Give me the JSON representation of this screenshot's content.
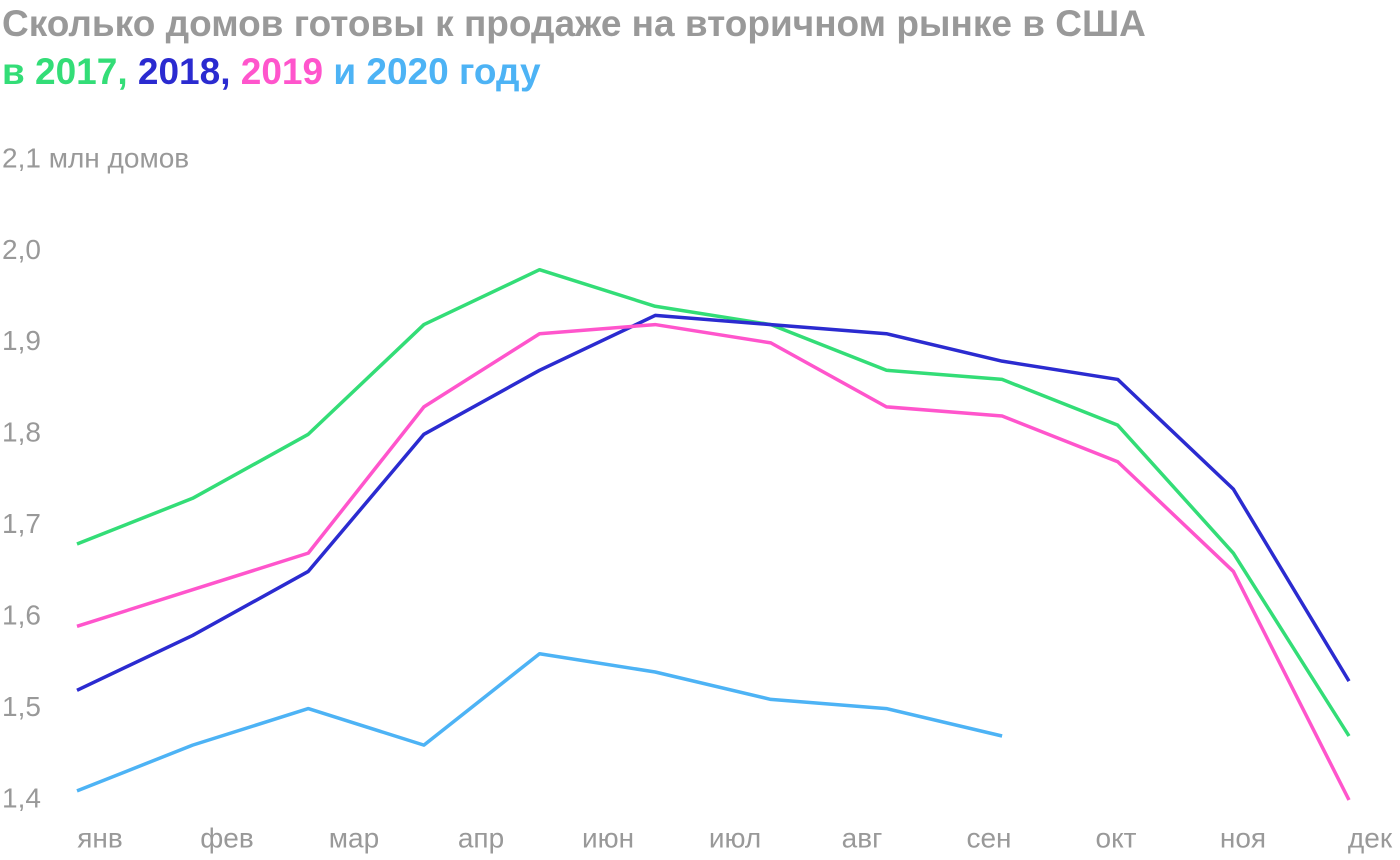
{
  "chart_data": {
    "type": "line",
    "title": "Сколько домов готовы к продаже на вторичном рынке в США",
    "title_prefix": "в",
    "title_separator": ",",
    "title_joiner": "и",
    "title_suffix": "году",
    "categories": [
      "янв",
      "фев",
      "мар",
      "апр",
      null,
      "июн",
      "июл",
      "авг",
      "сен",
      "окт",
      "ноя",
      "дек"
    ],
    "series": [
      {
        "name": "2017",
        "color": "#33dd77",
        "values": [
          1.68,
          1.73,
          1.8,
          1.92,
          1.98,
          1.94,
          1.92,
          1.87,
          1.86,
          1.81,
          1.67,
          1.47
        ]
      },
      {
        "name": "2018",
        "color": "#2b2bd0",
        "values": [
          1.52,
          1.58,
          1.65,
          1.8,
          1.87,
          1.93,
          1.92,
          1.91,
          1.88,
          1.86,
          1.74,
          1.53
        ]
      },
      {
        "name": "2019",
        "color": "#ff55cc",
        "values": [
          1.59,
          1.63,
          1.67,
          1.83,
          1.91,
          1.92,
          1.9,
          1.83,
          1.82,
          1.77,
          1.65,
          1.4
        ]
      },
      {
        "name": "2020",
        "color": "#4db3f5",
        "values": [
          1.41,
          1.46,
          1.5,
          1.46,
          1.56,
          1.54,
          1.51,
          1.5,
          1.47,
          null,
          null,
          null
        ]
      }
    ],
    "ylim": [
      1.4,
      2.1
    ],
    "yticks": [
      {
        "value": 1.4,
        "label": "1,4"
      },
      {
        "value": 1.5,
        "label": "1,5"
      },
      {
        "value": 1.6,
        "label": "1,6"
      },
      {
        "value": 1.7,
        "label": "1,7"
      },
      {
        "value": 1.8,
        "label": "1,8"
      },
      {
        "value": 1.9,
        "label": "1,9"
      },
      {
        "value": 2.0,
        "label": "2,0"
      },
      {
        "value": 2.1,
        "label": "2,1 млн домов"
      }
    ],
    "grid": false
  }
}
